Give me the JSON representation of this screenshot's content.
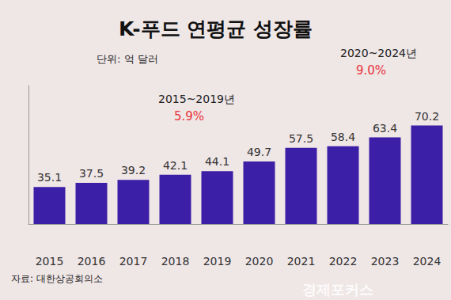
{
  "chart_data": {
    "type": "bar",
    "title": "K-푸드 연평균 성장률",
    "subtitle": "단위: 억 달러",
    "categories": [
      "2015",
      "2016",
      "2017",
      "2018",
      "2019",
      "2020",
      "2021",
      "2022",
      "2023",
      "2024"
    ],
    "values": [
      35.1,
      37.5,
      39.2,
      42.1,
      44.1,
      49.7,
      57.5,
      58.4,
      63.4,
      70.2
    ],
    "color": "#3b1fa6",
    "ylim": [
      14,
      93
    ],
    "tick_labels": "x",
    "grid": false,
    "data_labels": true,
    "annotations": [
      {
        "label": "2015~2019년",
        "text": "5.9%"
      },
      {
        "label": "2020~2024년",
        "text": "9.0%"
      }
    ],
    "source": "자료: 대한상공회의소",
    "watermark": "경제포커스"
  }
}
